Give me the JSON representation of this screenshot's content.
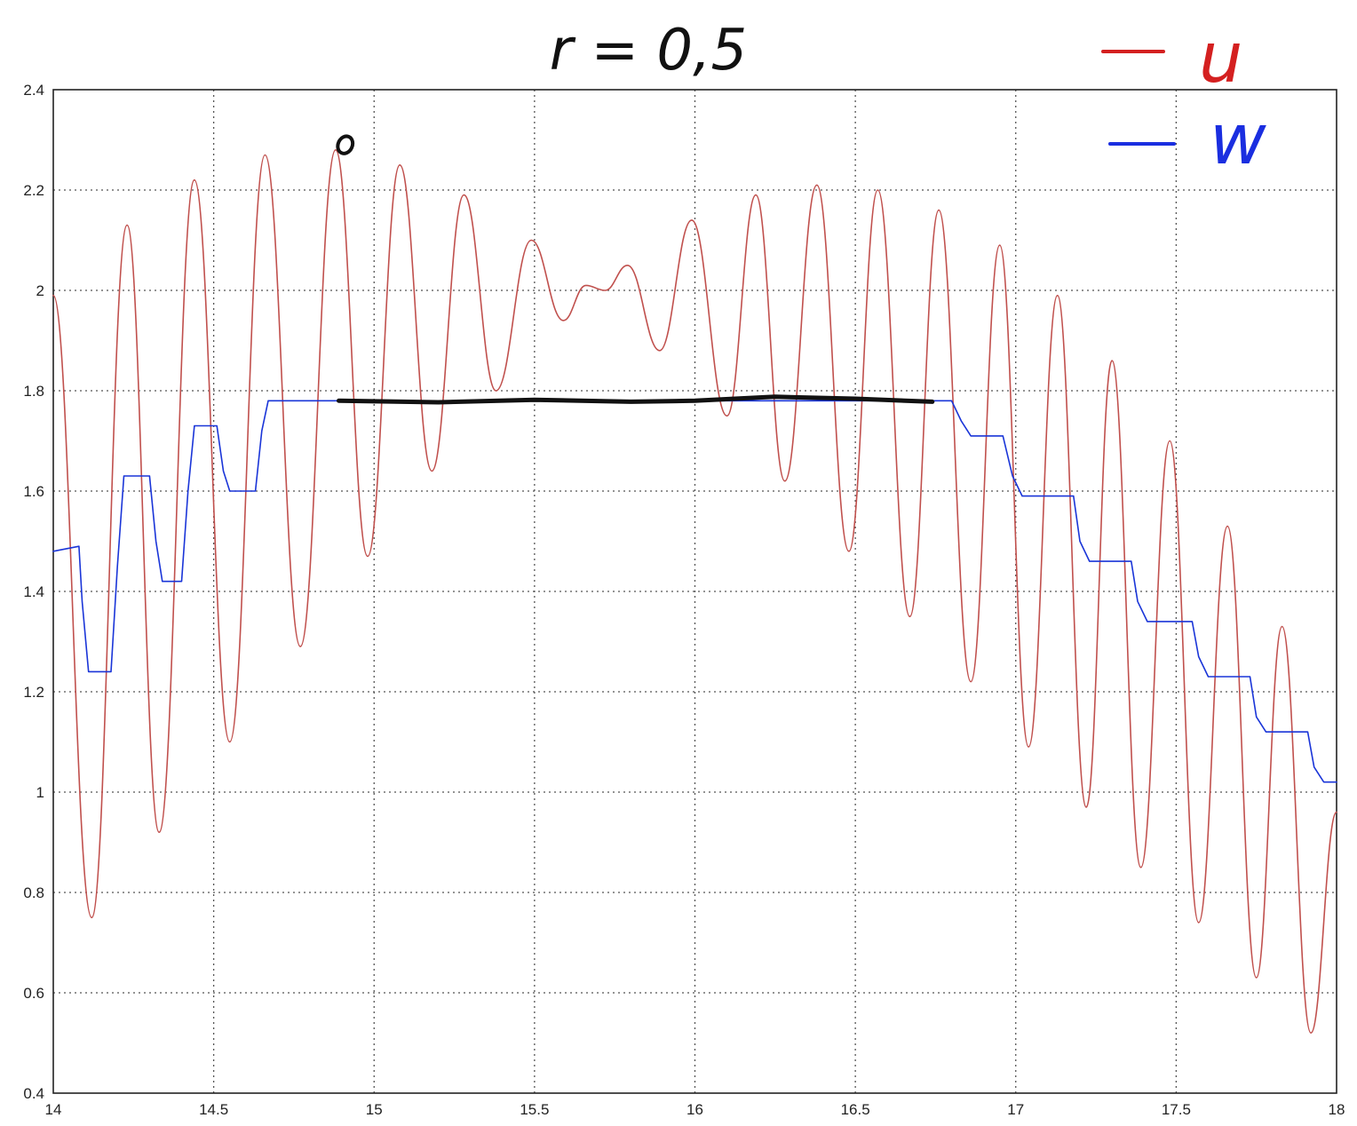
{
  "chart_data": {
    "type": "line",
    "title": "r = 0,5",
    "xlabel": "",
    "ylabel": "",
    "xlim": [
      14,
      18
    ],
    "ylim": [
      0.4,
      2.4
    ],
    "x_ticks": [
      "14",
      "14.5",
      "15",
      "15.5",
      "16",
      "16.5",
      "17",
      "17.5",
      "18"
    ],
    "y_ticks": [
      "0.4",
      "0.6",
      "0.8",
      "1",
      "1.2",
      "1.4",
      "1.6",
      "1.8",
      "2",
      "2.2",
      "2.4"
    ],
    "grid": true,
    "legend_position": "top-right",
    "legend": [
      {
        "name": "u",
        "color": "#d42020"
      },
      {
        "name": "w",
        "color": "#1a2ee0"
      }
    ],
    "series": [
      {
        "name": "u",
        "color": "#c0504d",
        "style": "smooth-oscillation",
        "x": [
          14.0,
          14.12,
          14.23,
          14.33,
          14.44,
          14.55,
          14.66,
          14.77,
          14.88,
          14.98,
          15.08,
          15.18,
          15.28,
          15.38,
          15.49,
          15.59,
          15.66,
          15.72,
          15.79,
          15.89,
          15.99,
          16.1,
          16.19,
          16.28,
          16.38,
          16.48,
          16.57,
          16.67,
          16.76,
          16.86,
          16.95,
          17.04,
          17.13,
          17.22,
          17.3,
          17.39,
          17.48,
          17.57,
          17.66,
          17.75,
          17.83,
          17.92,
          18.0
        ],
        "y": [
          1.99,
          0.75,
          2.13,
          0.92,
          2.22,
          1.1,
          2.27,
          1.29,
          2.28,
          1.47,
          2.25,
          1.64,
          2.19,
          1.8,
          2.1,
          1.94,
          2.01,
          2.0,
          2.05,
          1.88,
          2.14,
          1.75,
          2.19,
          1.62,
          2.21,
          1.48,
          2.2,
          1.35,
          2.16,
          1.22,
          2.09,
          1.09,
          1.99,
          0.97,
          1.86,
          0.85,
          1.7,
          0.74,
          1.53,
          0.63,
          1.33,
          0.52,
          0.96
        ]
      },
      {
        "name": "w",
        "color": "#1a35d8",
        "style": "steps",
        "x": [
          14.0,
          14.08,
          14.09,
          14.11,
          14.18,
          14.2,
          14.22,
          14.3,
          14.32,
          14.34,
          14.4,
          14.42,
          14.44,
          14.51,
          14.53,
          14.55,
          14.63,
          14.65,
          14.67,
          16.8,
          16.83,
          16.86,
          16.96,
          16.99,
          17.02,
          17.18,
          17.2,
          17.23,
          17.36,
          17.38,
          17.41,
          17.55,
          17.57,
          17.6,
          17.73,
          17.75,
          17.78,
          17.91,
          17.93,
          17.96,
          18.0
        ],
        "y": [
          1.48,
          1.49,
          1.38,
          1.24,
          1.24,
          1.45,
          1.63,
          1.63,
          1.5,
          1.42,
          1.42,
          1.6,
          1.73,
          1.73,
          1.64,
          1.6,
          1.6,
          1.72,
          1.78,
          1.78,
          1.74,
          1.71,
          1.71,
          1.63,
          1.59,
          1.59,
          1.5,
          1.46,
          1.46,
          1.38,
          1.34,
          1.34,
          1.27,
          1.23,
          1.23,
          1.15,
          1.12,
          1.12,
          1.05,
          1.02,
          1.02
        ]
      },
      {
        "name": "",
        "color": "#111111",
        "style": "hand-drawn",
        "x": [
          14.89,
          15.2,
          15.5,
          15.8,
          16.0,
          16.25,
          16.5,
          16.74
        ],
        "y": [
          1.78,
          1.777,
          1.782,
          1.778,
          1.78,
          1.788,
          1.784,
          1.778
        ]
      }
    ],
    "annotations": [
      {
        "type": "circle-mark",
        "x": 14.91,
        "y": 2.29
      }
    ]
  }
}
